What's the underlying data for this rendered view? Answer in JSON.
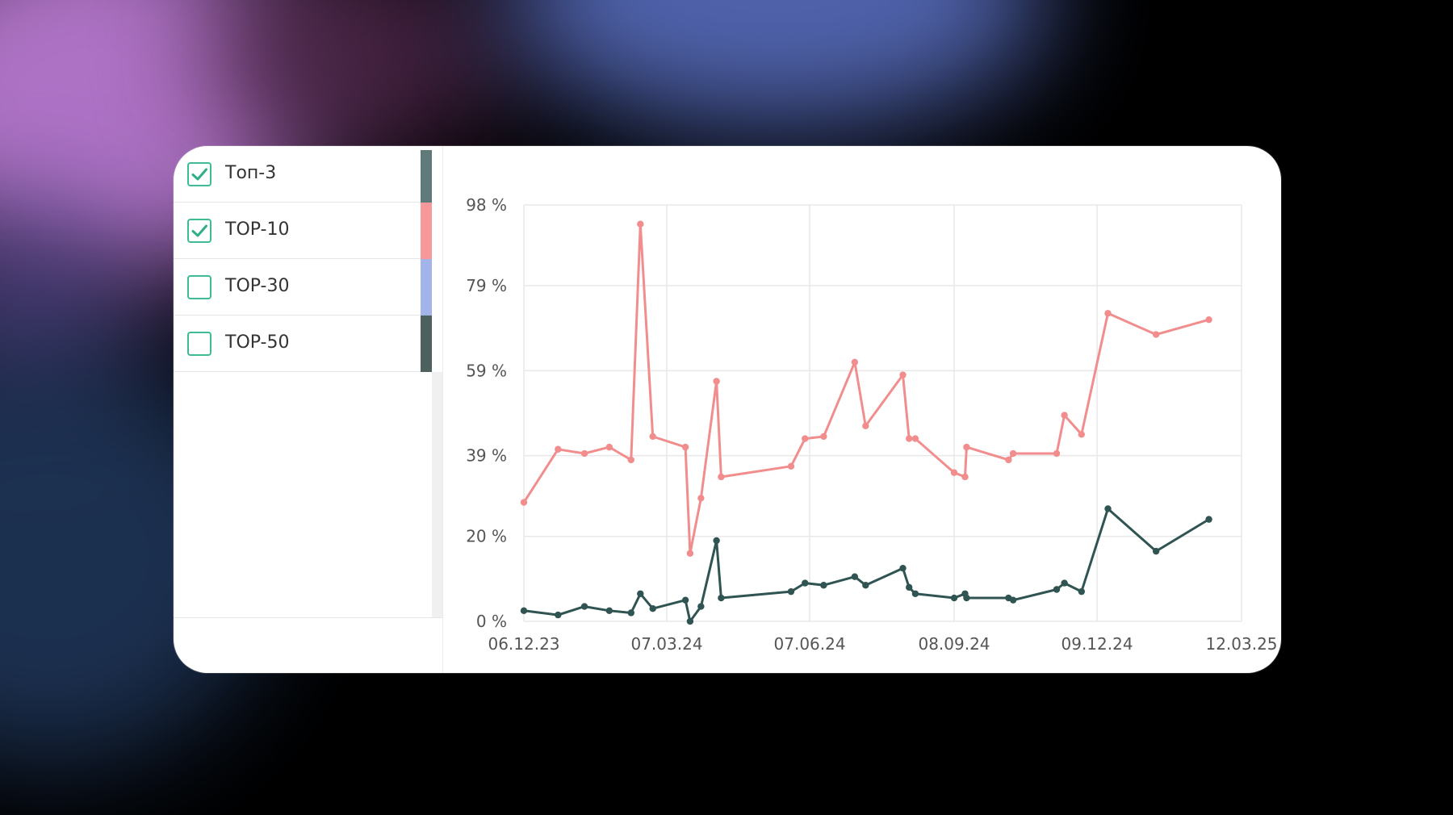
{
  "legend": [
    {
      "label": "Топ-3",
      "checked": true,
      "color": "#5f7a78"
    },
    {
      "label": "TOP-10",
      "checked": true,
      "color": "#f7999a"
    },
    {
      "label": "TOP-30",
      "checked": false,
      "color": "#a3b4ea"
    },
    {
      "label": "TOP-50",
      "checked": false,
      "color": "#4d615f"
    }
  ],
  "chart_data": {
    "type": "line",
    "title": "",
    "xlabel": "",
    "ylabel": "",
    "y_ticks": [
      "98 %",
      "79 %",
      "59 %",
      "39 %",
      "20 %",
      "0 %"
    ],
    "y_tick_values": [
      98,
      79,
      59,
      39,
      20,
      0
    ],
    "x_ticks": [
      "06.12.23",
      "07.03.24",
      "07.06.24",
      "08.09.24",
      "09.12.24",
      "12.03.25"
    ],
    "x_tick_values": [
      "2023-12-06",
      "2024-03-07",
      "2024-06-07",
      "2024-09-08",
      "2024-12-09",
      "2025-03-12"
    ],
    "ylim": [
      0,
      98
    ],
    "xlim": [
      "2023-12-06",
      "2025-03-12"
    ],
    "grid": true,
    "series": [
      {
        "name": "TOP-10",
        "color": "#f28d8e",
        "points": [
          [
            "2023-12-06",
            28
          ],
          [
            "2023-12-28",
            40.5
          ],
          [
            "2024-01-14",
            39.5
          ],
          [
            "2024-01-30",
            41
          ],
          [
            "2024-02-13",
            38
          ],
          [
            "2024-02-19",
            93.5
          ],
          [
            "2024-02-27",
            43.5
          ],
          [
            "2024-03-19",
            41
          ],
          [
            "2024-03-22",
            16
          ],
          [
            "2024-03-29",
            29
          ],
          [
            "2024-04-08",
            56.5
          ],
          [
            "2024-04-11",
            34
          ],
          [
            "2024-05-26",
            36.5
          ],
          [
            "2024-06-04",
            43
          ],
          [
            "2024-06-16",
            43.5
          ],
          [
            "2024-07-06",
            61
          ],
          [
            "2024-07-13",
            46
          ],
          [
            "2024-08-06",
            58
          ],
          [
            "2024-08-10",
            43
          ],
          [
            "2024-08-14",
            43
          ],
          [
            "2024-09-08",
            35
          ],
          [
            "2024-09-15",
            34
          ],
          [
            "2024-09-16",
            41
          ],
          [
            "2024-10-13",
            38
          ],
          [
            "2024-10-16",
            39.5
          ],
          [
            "2024-11-13",
            39.5
          ],
          [
            "2024-11-18",
            48.5
          ],
          [
            "2024-11-29",
            44
          ],
          [
            "2024-12-16",
            72.5
          ],
          [
            "2025-01-16",
            67.5
          ],
          [
            "2025-02-19",
            71
          ]
        ]
      },
      {
        "name": "Топ-3",
        "color": "#2f5452",
        "points": [
          [
            "2023-12-06",
            2.5
          ],
          [
            "2023-12-28",
            1.5
          ],
          [
            "2024-01-14",
            3.5
          ],
          [
            "2024-01-30",
            2.5
          ],
          [
            "2024-02-13",
            2
          ],
          [
            "2024-02-19",
            6.5
          ],
          [
            "2024-02-27",
            3
          ],
          [
            "2024-03-19",
            5
          ],
          [
            "2024-03-22",
            0
          ],
          [
            "2024-03-29",
            3.5
          ],
          [
            "2024-04-08",
            19
          ],
          [
            "2024-04-11",
            5.5
          ],
          [
            "2024-05-26",
            7
          ],
          [
            "2024-06-04",
            9
          ],
          [
            "2024-06-16",
            8.5
          ],
          [
            "2024-07-06",
            10.5
          ],
          [
            "2024-07-13",
            8.5
          ],
          [
            "2024-08-06",
            12.5
          ],
          [
            "2024-08-10",
            8
          ],
          [
            "2024-08-14",
            6.5
          ],
          [
            "2024-09-08",
            5.5
          ],
          [
            "2024-09-15",
            6.5
          ],
          [
            "2024-09-16",
            5.5
          ],
          [
            "2024-10-13",
            5.5
          ],
          [
            "2024-10-16",
            5
          ],
          [
            "2024-11-13",
            7.5
          ],
          [
            "2024-11-18",
            9
          ],
          [
            "2024-11-29",
            7
          ],
          [
            "2024-12-16",
            26.5
          ],
          [
            "2025-01-16",
            16.5
          ],
          [
            "2025-02-19",
            24
          ]
        ]
      }
    ]
  }
}
